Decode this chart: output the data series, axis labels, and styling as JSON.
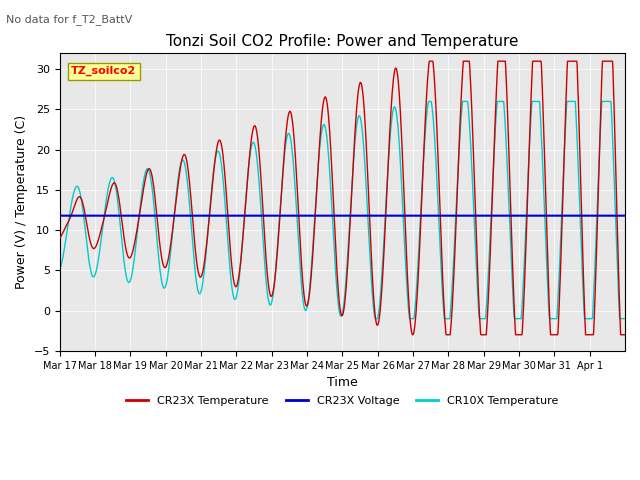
{
  "title": "Tonzi Soil CO2 Profile: Power and Temperature",
  "subtitle": "No data for f_T2_BattV",
  "xlabel": "Time",
  "ylabel": "Power (V) / Temperature (C)",
  "ylim": [
    -5,
    32
  ],
  "yticks": [
    -5,
    0,
    5,
    10,
    15,
    20,
    25,
    30
  ],
  "x_tick_labels": [
    "Mar 17",
    "Mar 18",
    "Mar 19",
    "Mar 20",
    "Mar 21",
    "Mar 22",
    "Mar 23",
    "Mar 24",
    "Mar 25",
    "Mar 26",
    "Mar 27",
    "Mar 28",
    "Mar 29",
    "Mar 30",
    "Mar 31",
    "Apr 1"
  ],
  "legend_items": [
    {
      "label": "CR23X Temperature",
      "color": "#cc0000",
      "linestyle": "-"
    },
    {
      "label": "CR23X Voltage",
      "color": "#0000cc",
      "linestyle": "-"
    },
    {
      "label": "CR10X Temperature",
      "color": "#00cccc",
      "linestyle": "-"
    }
  ],
  "cr23x_voltage_value": 11.8,
  "legend_box_label": "TZ_soilco2",
  "legend_box_color": "#ffff99",
  "legend_box_border": "#999900",
  "background_color": "#ffffff",
  "plot_bg_color": "#e8e8e8",
  "cr23x_temp_color": "#cc0000",
  "cr10x_temp_color": "#00cccc",
  "voltage_color": "#0000cc"
}
